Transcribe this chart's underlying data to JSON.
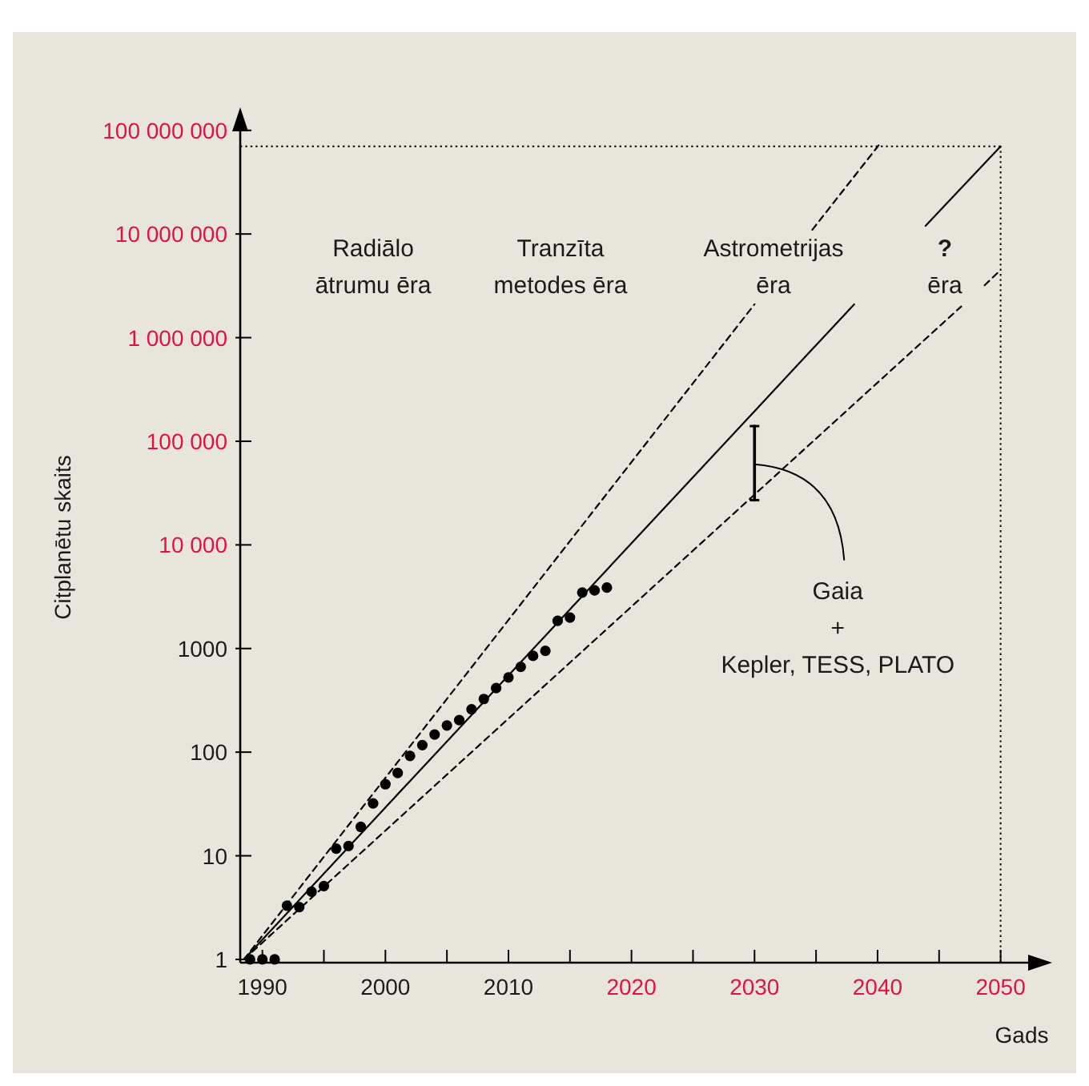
{
  "chart_data": {
    "type": "line",
    "xlabel": "Gads",
    "ylabel": "Citplanētu skaits",
    "log": "y",
    "grid": false,
    "xlim": [
      1988.2,
      2053.8
    ],
    "ylim": [
      0.93,
      150000000
    ],
    "xticks": [
      {
        "value": 1990,
        "label": "1990"
      },
      {
        "value": 1995,
        "label": null
      },
      {
        "value": 2000,
        "label": "2000"
      },
      {
        "value": 2005,
        "label": null
      },
      {
        "value": 2010,
        "label": "2010"
      },
      {
        "value": 2015,
        "label": null
      },
      {
        "value": 2020,
        "label": "2020"
      },
      {
        "value": 2025,
        "label": null
      },
      {
        "value": 2030,
        "label": "2030"
      },
      {
        "value": 2035,
        "label": null
      },
      {
        "value": 2040,
        "label": "2040"
      },
      {
        "value": 2045,
        "label": null
      },
      {
        "value": 2050,
        "label": "2050"
      }
    ],
    "yticks": [
      1,
      10,
      100,
      1000,
      {
        "value": 10000,
        "label": "10 000"
      },
      {
        "value": 100000,
        "label": "100 000"
      },
      {
        "value": 1000000,
        "label": "1 000 000"
      },
      {
        "value": 10000000,
        "label": "10 000 000"
      },
      {
        "value": 100000000,
        "label": "100 000 000"
      }
    ],
    "series": [
      {
        "type": "scatter",
        "color": "#000000",
        "marker": "circle",
        "x": [
          1989,
          1990,
          1991,
          1992,
          1993,
          1994,
          1995,
          1996,
          1997,
          1998,
          1999,
          2000,
          2001,
          2002,
          2003,
          2004,
          2005,
          2006,
          2007,
          2008,
          2009,
          2010,
          2011,
          2012,
          2013,
          2014,
          2015,
          2016,
          2017,
          2018
        ],
        "values": [
          1,
          1,
          1,
          3.3,
          3.2,
          4.5,
          5.1,
          11.7,
          12.4,
          19,
          32,
          49,
          63,
          92,
          117,
          148,
          181,
          204,
          259,
          326,
          415,
          526,
          665,
          850,
          950,
          1850,
          1990,
          3470,
          3640,
          3870
        ]
      },
      {
        "type": "line",
        "color": "#000000",
        "line_style": "dashed",
        "marker": "none",
        "x": [
          1988.5,
          2030,
          2032,
          2034.7,
          2040.1
        ],
        "values": [
          1,
          2100000,
          null,
          11000000,
          72000000
        ]
      },
      {
        "type": "line",
        "color": "#000000",
        "line_style": "solid",
        "marker": "none",
        "x": [
          1988.5,
          2038.1,
          2041,
          2043.9,
          2050
        ],
        "values": [
          1,
          2100000,
          null,
          12000000,
          70000000
        ]
      },
      {
        "type": "line",
        "color": "#000000",
        "line_style": "dashed",
        "marker": "none",
        "x": [
          1988.5,
          2046.8,
          2047.5,
          2048.7,
          2050
        ],
        "values": [
          1,
          2000000,
          null,
          3200000,
          4500000
        ]
      },
      {
        "type": "line",
        "color": "#000000",
        "line_style": "solid",
        "marker": "none",
        "x": [
          2030,
          2030
        ],
        "values": [
          27000,
          140000
        ]
      }
    ],
    "ref_lines": [
      {
        "axis": "y",
        "value": 70000000,
        "line_style": "dotted",
        "color": "#000000"
      },
      {
        "axis": "x",
        "value": 2050,
        "line_style": "dotted",
        "color": "#000000"
      }
    ],
    "annotations": [
      "Radiālo\nātrumu ēra",
      "Tranzīta\nmetodes ēra",
      "Astrometrijas\nēra",
      "?\nēra",
      {
        "text": "Gaia\n+\nKepler, TESS, PLATO",
        "x": 2030,
        "y": 60000
      }
    ]
  }
}
